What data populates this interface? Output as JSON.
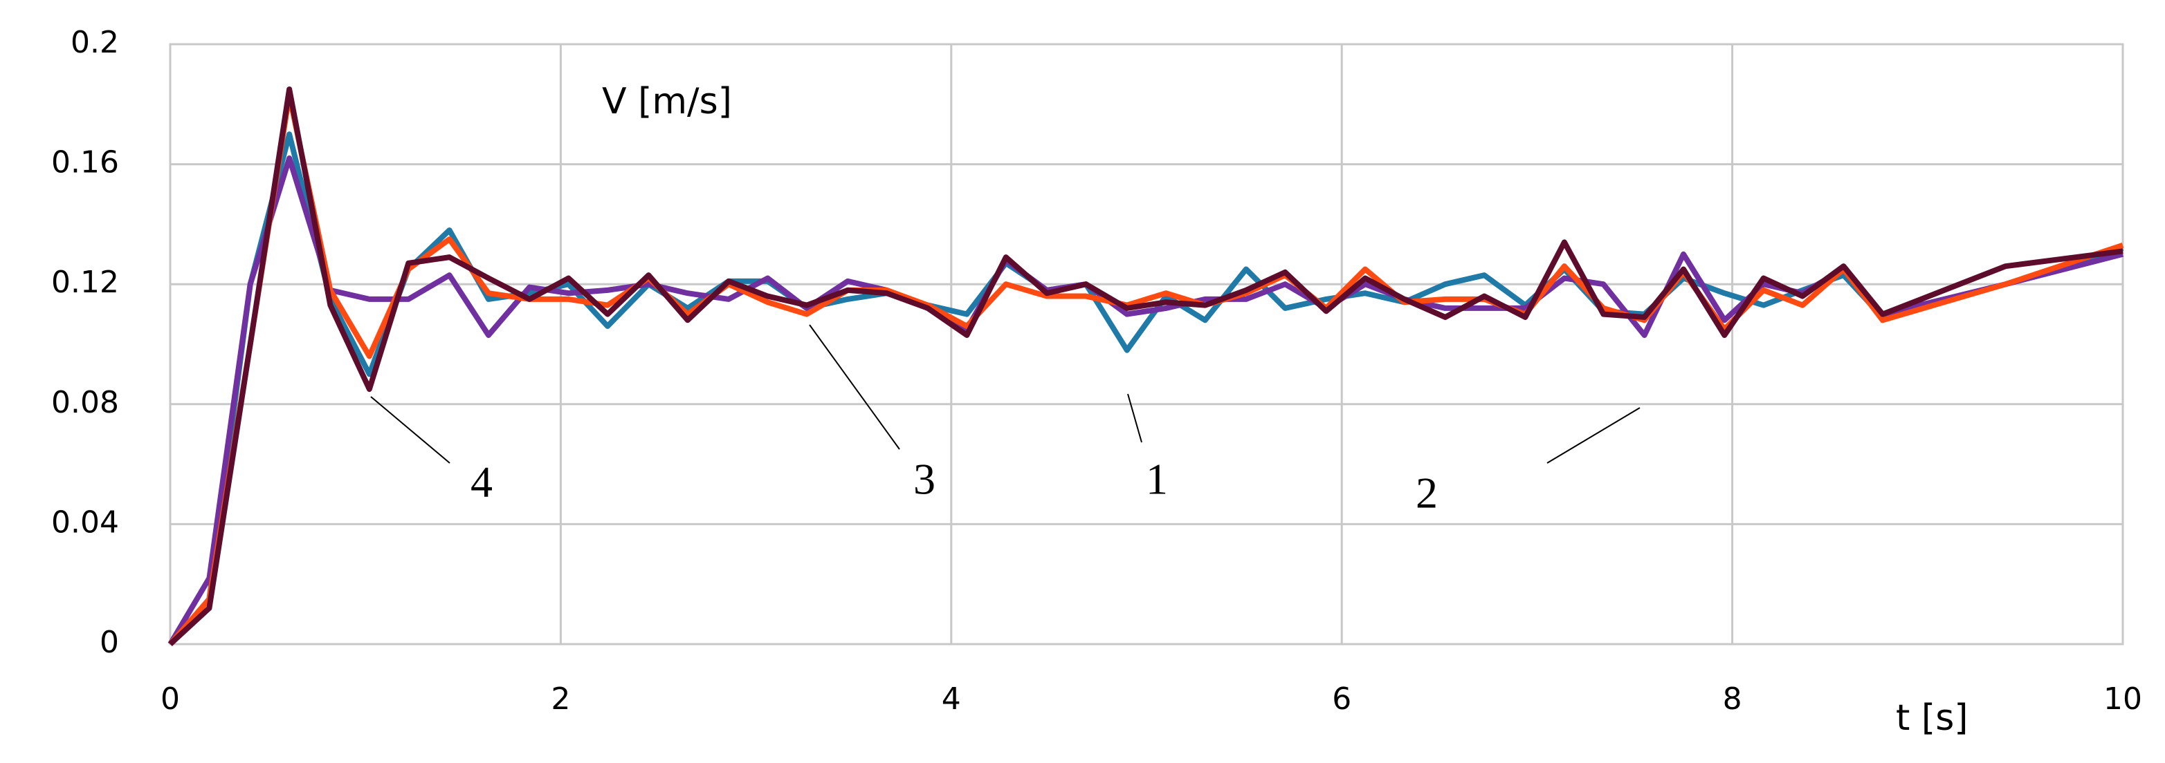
{
  "chart_data": {
    "type": "line",
    "ylabel": "V [m/s]",
    "xlabel": "t [s]",
    "x": [
      0,
      0.2,
      0.41,
      0.61,
      0.82,
      1.02,
      1.22,
      1.43,
      1.63,
      1.84,
      2.04,
      2.24,
      2.45,
      2.65,
      2.86,
      3.06,
      3.26,
      3.47,
      3.67,
      3.88,
      4.08,
      4.28,
      4.49,
      4.69,
      4.9,
      5.1,
      5.3,
      5.51,
      5.71,
      5.92,
      6.12,
      6.32,
      6.53,
      6.73,
      6.94,
      7.14,
      7.34,
      7.55,
      7.75,
      7.96,
      8.16,
      8.36,
      8.57,
      8.77,
      9.4,
      10
    ],
    "series": [
      {
        "name": "1",
        "color": "#1f7aa8",
        "values": [
          0,
          0.015,
          0.12,
          0.17,
          0.115,
          0.09,
          0.125,
          0.138,
          0.115,
          0.117,
          0.12,
          0.106,
          0.12,
          0.112,
          0.121,
          0.121,
          0.112,
          0.115,
          0.117,
          0.113,
          0.11,
          0.127,
          0.118,
          0.12,
          0.098,
          0.116,
          0.108,
          0.125,
          0.112,
          0.115,
          0.117,
          0.114,
          0.12,
          0.123,
          0.113,
          0.125,
          0.111,
          0.11,
          0.122,
          0.117,
          0.113,
          0.118,
          0.123,
          0.109,
          0.12,
          0.132
        ]
      },
      {
        "name": "2",
        "color": "#7030a0",
        "values": [
          0,
          0.022,
          0.12,
          0.162,
          0.118,
          0.115,
          0.115,
          0.123,
          0.103,
          0.119,
          0.117,
          0.118,
          0.12,
          0.117,
          0.115,
          0.122,
          0.112,
          0.121,
          0.118,
          0.112,
          0.105,
          0.128,
          0.118,
          0.12,
          0.11,
          0.112,
          0.115,
          0.115,
          0.12,
          0.112,
          0.12,
          0.115,
          0.112,
          0.112,
          0.112,
          0.122,
          0.12,
          0.103,
          0.13,
          0.108,
          0.12,
          0.117,
          0.125,
          0.11,
          0.12,
          0.13
        ]
      },
      {
        "name": "3",
        "color": "#ff4a12",
        "values": [
          0,
          0.015,
          0.1,
          0.183,
          0.118,
          0.096,
          0.125,
          0.135,
          0.117,
          0.115,
          0.115,
          0.113,
          0.122,
          0.11,
          0.12,
          0.114,
          0.11,
          0.118,
          0.118,
          0.113,
          0.106,
          0.12,
          0.116,
          0.116,
          0.113,
          0.117,
          0.113,
          0.117,
          0.123,
          0.112,
          0.125,
          0.114,
          0.115,
          0.115,
          0.11,
          0.126,
          0.112,
          0.108,
          0.124,
          0.105,
          0.118,
          0.113,
          0.125,
          0.108,
          0.12,
          0.133
        ]
      },
      {
        "name": "4",
        "color": "#5e0c2c",
        "values": [
          0,
          0.012,
          0.1,
          0.185,
          0.113,
          0.085,
          0.127,
          0.129,
          0.122,
          0.115,
          0.122,
          0.11,
          0.123,
          0.108,
          0.121,
          0.116,
          0.113,
          0.118,
          0.117,
          0.112,
          0.103,
          0.129,
          0.117,
          0.12,
          0.112,
          0.114,
          0.113,
          0.118,
          0.124,
          0.111,
          0.122,
          0.115,
          0.109,
          0.116,
          0.109,
          0.134,
          0.11,
          0.109,
          0.125,
          0.103,
          0.122,
          0.116,
          0.126,
          0.11,
          0.126,
          0.131
        ]
      }
    ],
    "xlim": [
      0,
      10
    ],
    "xticks": [
      0,
      2,
      4,
      6,
      8,
      10
    ],
    "ylim": [
      0,
      0.2
    ],
    "yticks": [
      0,
      0.04,
      0.08,
      0.12,
      0.16,
      0.2
    ],
    "grid": true
  }
}
